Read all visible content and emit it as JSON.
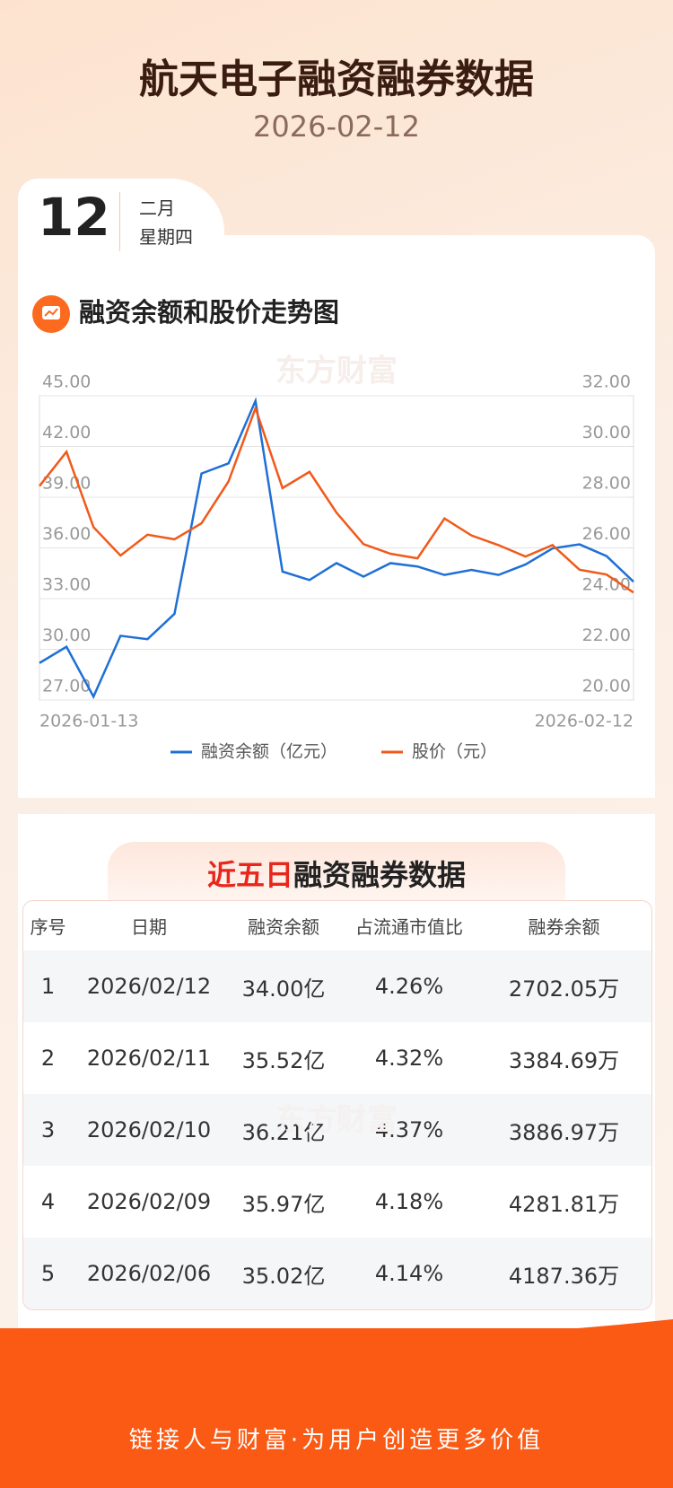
{
  "header": {
    "title": "航天电子融资融券数据",
    "date": "2026-02-12"
  },
  "date_card": {
    "day": "12",
    "month": "二月",
    "weekday": "星期四"
  },
  "watermark": "东方财富",
  "chart_data": {
    "type": "line",
    "title": "融资余额和股价走势图",
    "categories": [
      "2026-01-13",
      null,
      null,
      null,
      null,
      null,
      null,
      null,
      null,
      null,
      null,
      null,
      null,
      null,
      null,
      null,
      null,
      null,
      null,
      null,
      null,
      null,
      "2026-02-12"
    ],
    "series": [
      {
        "name": "融资余额（亿元）",
        "color": "#1f6fd6",
        "values": [
          29.19,
          30.15,
          27.2,
          30.8,
          30.6,
          32.1,
          40.4,
          41.0,
          44.7,
          34.6,
          34.1,
          35.1,
          34.3,
          35.1,
          34.9,
          34.4,
          34.7,
          34.4,
          35.02,
          35.97,
          36.21,
          35.52,
          34.0
        ]
      },
      {
        "name": "股价（元）",
        "color": "#f05a1a",
        "axis": "y2",
        "values": [
          28.44,
          29.79,
          26.82,
          25.7,
          26.52,
          26.34,
          26.97,
          28.62,
          31.51,
          28.36,
          29.0,
          27.39,
          26.15,
          25.77,
          25.59,
          27.16,
          26.49,
          26.11,
          25.66,
          26.11,
          25.14,
          24.95,
          24.24
        ]
      }
    ],
    "ylim": [
      27,
      45
    ],
    "yticks": [
      {
        "value": 27,
        "label": "27.00"
      },
      {
        "value": 30,
        "label": "30.00"
      },
      {
        "value": 33,
        "label": "33.00"
      },
      {
        "value": 36,
        "label": "36.00"
      },
      {
        "value": 39,
        "label": "39.00"
      },
      {
        "value": 42,
        "label": "42.00"
      },
      {
        "value": 45,
        "label": "45.00"
      }
    ],
    "y2lim": [
      20,
      32
    ],
    "y2ticks": [
      {
        "value": 20,
        "label": "20.00"
      },
      {
        "value": 22,
        "label": "22.00"
      },
      {
        "value": 24,
        "label": "24.00"
      },
      {
        "value": 26,
        "label": "26.00"
      },
      {
        "value": 28,
        "label": "28.00"
      },
      {
        "value": 30,
        "label": "30.00"
      },
      {
        "value": 32,
        "label": "32.00"
      }
    ],
    "grid": true,
    "legend": "bottom"
  },
  "table": {
    "title_highlight": "近五日",
    "title_rest": "融资融券数据",
    "headers": [
      "序号",
      "日期",
      "融资余额",
      "占流通市值比",
      "融券余额"
    ],
    "rows": [
      [
        "1",
        "2026/02/12",
        "34.00亿",
        "4.26%",
        "2702.05万"
      ],
      [
        "2",
        "2026/02/11",
        "35.52亿",
        "4.32%",
        "3384.69万"
      ],
      [
        "3",
        "2026/02/10",
        "36.21亿",
        "4.37%",
        "3886.97万"
      ],
      [
        "4",
        "2026/02/09",
        "35.97亿",
        "4.18%",
        "4281.81万"
      ],
      [
        "5",
        "2026/02/06",
        "35.02亿",
        "4.14%",
        "4187.36万"
      ]
    ]
  },
  "footer": {
    "slogan": "链接人与财富·为用户创造更多价值"
  }
}
